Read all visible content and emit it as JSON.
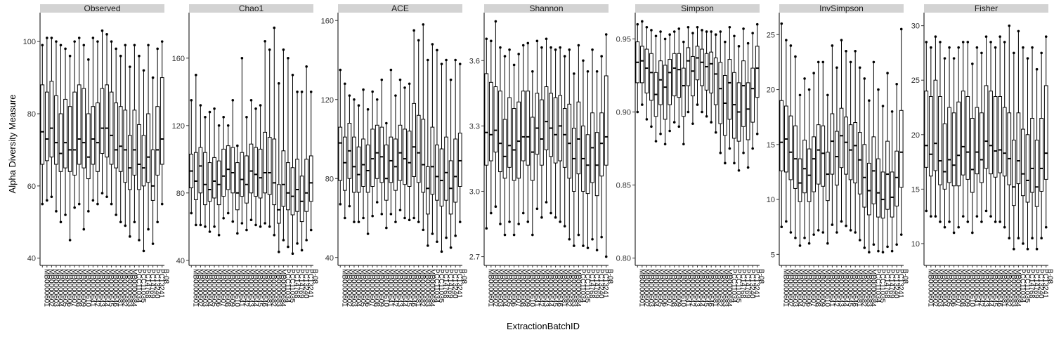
{
  "chart_data": {
    "type": "box",
    "ylabel": "Alpha Diversity Measure",
    "xlabel": "ExtractionBatchID",
    "colors": {
      "strip": "#d3d3d3",
      "box": "#000000",
      "background": "#ffffff"
    },
    "categories": [
      "MB0000601",
      "MB0000602",
      "MB0000603",
      "MB0000604",
      "MB0000605",
      "MB0000606",
      "MB0000607",
      "MB0000608",
      "MB0000609",
      "MB0000610",
      "MB0000641",
      "MB0000642",
      "MB0000643",
      "MB0000644",
      "MB0000645",
      "MB0000646",
      "MB0000681",
      "MB0000682",
      "MB0000683",
      "MB0000684",
      "PCC11034",
      "PCC11035",
      "PC14768",
      "PC14769",
      "PC13240",
      "PC13241",
      "B-08"
    ],
    "panels": [
      {
        "name": "Observed",
        "ylim": [
          38,
          108
        ],
        "ticks": [
          40,
          60,
          80,
          100
        ],
        "medians": [
          75,
          73,
          76,
          72,
          69,
          72,
          70,
          70,
          73,
          72,
          68,
          73,
          72,
          76,
          76,
          74,
          70,
          71,
          70,
          65,
          70,
          66,
          65,
          68,
          60,
          70,
          73
        ],
        "q1": [
          66,
          67,
          68,
          66,
          64,
          65,
          64,
          63,
          66,
          65,
          62,
          66,
          64,
          69,
          68,
          66,
          65,
          64,
          61,
          59,
          63,
          59,
          60,
          61,
          56,
          63,
          66
        ],
        "q3": [
          88,
          86,
          89,
          85,
          80,
          84,
          82,
          86,
          88,
          87,
          80,
          82,
          83,
          87,
          88,
          86,
          83,
          82,
          81,
          74,
          81,
          77,
          74,
          80,
          70,
          82,
          90
        ],
        "lo": [
          55,
          56,
          57,
          53,
          50,
          52,
          45,
          54,
          55,
          48,
          53,
          56,
          55,
          58,
          57,
          55,
          52,
          50,
          49,
          46,
          50,
          45,
          42,
          48,
          44,
          50,
          55
        ],
        "hi": [
          99,
          101,
          101,
          100,
          99,
          98,
          96,
          100,
          101,
          99,
          95,
          101,
          100,
          103,
          102,
          100,
          98,
          96,
          99,
          93,
          99,
          96,
          92,
          99,
          90,
          98,
          100
        ]
      },
      {
        "name": "Chao1",
        "ylim": [
          37,
          187
        ],
        "ticks": [
          40,
          80,
          120,
          160
        ],
        "medians": [
          93,
          87,
          96,
          85,
          82,
          87,
          85,
          90,
          94,
          92,
          80,
          88,
          85,
          93,
          91,
          89,
          92,
          92,
          86,
          70,
          85,
          80,
          78,
          82,
          75,
          80,
          86
        ],
        "q1": [
          83,
          76,
          80,
          73,
          75,
          77,
          73,
          78,
          82,
          80,
          70,
          78,
          74,
          80,
          78,
          77,
          80,
          79,
          73,
          62,
          72,
          70,
          67,
          69,
          63,
          69,
          75
        ],
        "q3": [
          103,
          104,
          107,
          104,
          98,
          101,
          99,
          106,
          108,
          107,
          98,
          104,
          102,
          109,
          107,
          106,
          116,
          113,
          112,
          85,
          105,
          98,
          95,
          100,
          90,
          100,
          102
        ],
        "lo": [
          68,
          61,
          61,
          60,
          57,
          60,
          55,
          65,
          68,
          63,
          56,
          62,
          58,
          64,
          61,
          60,
          62,
          60,
          55,
          45,
          52,
          48,
          44,
          50,
          46,
          52,
          58
        ],
        "hi": [
          135,
          150,
          132,
          125,
          128,
          130,
          120,
          125,
          120,
          135,
          108,
          160,
          125,
          135,
          130,
          132,
          170,
          165,
          178,
          145,
          165,
          160,
          150,
          140,
          140,
          155,
          140
        ]
      },
      {
        "name": "ACE",
        "ylim": [
          36,
          164
        ],
        "ticks": [
          40,
          80,
          120,
          160
        ],
        "medians": [
          98,
          88,
          94,
          86,
          82,
          87,
          84,
          90,
          93,
          91,
          80,
          89,
          86,
          93,
          90,
          88,
          96,
          93,
          87,
          75,
          86,
          81,
          79,
          83,
          75,
          81,
          89
        ],
        "q1": [
          79,
          74,
          80,
          73,
          73,
          76,
          73,
          76,
          80,
          78,
          69,
          78,
          74,
          79,
          77,
          76,
          81,
          78,
          73,
          62,
          72,
          69,
          66,
          69,
          62,
          68,
          76
        ],
        "q3": [
          106,
          101,
          108,
          101,
          96,
          100,
          97,
          105,
          107,
          106,
          97,
          101,
          100,
          107,
          105,
          104,
          118,
          112,
          110,
          86,
          106,
          97,
          95,
          101,
          89,
          100,
          103
        ],
        "lo": [
          67,
          60,
          66,
          58,
          58,
          60,
          52,
          61,
          68,
          62,
          55,
          62,
          58,
          64,
          60,
          59,
          60,
          58,
          54,
          46,
          52,
          48,
          43,
          50,
          45,
          51,
          58
        ],
        "hi": [
          135,
          128,
          122,
          120,
          117,
          125,
          115,
          124,
          120,
          130,
          108,
          135,
          122,
          130,
          126,
          128,
          155,
          150,
          158,
          140,
          148,
          145,
          138,
          140,
          130,
          140,
          138
        ]
      },
      {
        "name": "Shannon",
        "ylim": [
          2.66,
          3.82
        ],
        "ticks": [
          2.7,
          3.0,
          3.3,
          3.6
        ],
        "medians": [
          3.27,
          3.26,
          3.28,
          3.22,
          3.16,
          3.21,
          3.19,
          3.23,
          3.25,
          3.25,
          3.18,
          3.29,
          3.24,
          3.32,
          3.29,
          3.26,
          3.3,
          3.26,
          3.22,
          3.15,
          3.24,
          3.15,
          3.12,
          3.2,
          3.12,
          3.22,
          3.25
        ],
        "q1": [
          3.12,
          3.14,
          3.18,
          3.09,
          3.06,
          3.11,
          3.05,
          3.06,
          3.14,
          3.12,
          3.05,
          3.17,
          3.12,
          3.19,
          3.16,
          3.13,
          3.14,
          3.11,
          3.06,
          3.0,
          3.08,
          3.0,
          2.99,
          3.04,
          2.98,
          3.07,
          3.12
        ],
        "q3": [
          3.54,
          3.5,
          3.48,
          3.46,
          3.33,
          3.43,
          3.38,
          3.41,
          3.46,
          3.46,
          3.34,
          3.45,
          3.42,
          3.48,
          3.45,
          3.43,
          3.44,
          3.38,
          3.4,
          3.29,
          3.41,
          3.3,
          3.26,
          3.36,
          3.27,
          3.36,
          3.53
        ],
        "lo": [
          2.83,
          2.9,
          2.93,
          2.85,
          2.8,
          2.86,
          2.8,
          2.85,
          2.9,
          2.86,
          2.8,
          2.92,
          2.88,
          2.95,
          2.9,
          2.88,
          2.86,
          2.84,
          2.78,
          2.75,
          2.8,
          2.75,
          2.74,
          2.78,
          2.73,
          2.79,
          2.7
        ],
        "hi": [
          3.7,
          3.69,
          3.78,
          3.66,
          3.62,
          3.65,
          3.58,
          3.63,
          3.67,
          3.68,
          3.55,
          3.69,
          3.66,
          3.7,
          3.66,
          3.65,
          3.66,
          3.62,
          3.65,
          3.54,
          3.67,
          3.6,
          3.55,
          3.65,
          3.55,
          3.62,
          3.72
        ]
      },
      {
        "name": "Simpson",
        "ylim": [
          0.795,
          0.968
        ],
        "ticks": [
          0.8,
          0.85,
          0.9,
          0.95
        ],
        "medians": [
          0.934,
          0.935,
          0.93,
          0.927,
          0.912,
          0.922,
          0.917,
          0.927,
          0.93,
          0.929,
          0.918,
          0.935,
          0.928,
          0.937,
          0.934,
          0.931,
          0.933,
          0.926,
          0.916,
          0.906,
          0.92,
          0.905,
          0.9,
          0.918,
          0.902,
          0.916,
          0.93
        ],
        "q1": [
          0.92,
          0.92,
          0.913,
          0.908,
          0.897,
          0.905,
          0.895,
          0.905,
          0.911,
          0.91,
          0.897,
          0.918,
          0.911,
          0.922,
          0.918,
          0.915,
          0.913,
          0.905,
          0.892,
          0.884,
          0.895,
          0.882,
          0.88,
          0.89,
          0.881,
          0.893,
          0.91
        ],
        "q3": [
          0.948,
          0.945,
          0.943,
          0.94,
          0.927,
          0.935,
          0.932,
          0.936,
          0.94,
          0.94,
          0.93,
          0.944,
          0.938,
          0.945,
          0.943,
          0.94,
          0.941,
          0.937,
          0.934,
          0.925,
          0.936,
          0.927,
          0.92,
          0.935,
          0.92,
          0.93,
          0.945
        ],
        "lo": [
          0.9,
          0.905,
          0.895,
          0.89,
          0.88,
          0.885,
          0.878,
          0.887,
          0.893,
          0.89,
          0.878,
          0.9,
          0.892,
          0.905,
          0.9,
          0.897,
          0.893,
          0.886,
          0.872,
          0.865,
          0.875,
          0.865,
          0.86,
          0.872,
          0.862,
          0.875,
          0.885
        ],
        "hi": [
          0.96,
          0.962,
          0.958,
          0.956,
          0.952,
          0.955,
          0.95,
          0.953,
          0.955,
          0.957,
          0.948,
          0.958,
          0.954,
          0.958,
          0.956,
          0.955,
          0.955,
          0.953,
          0.955,
          0.948,
          0.958,
          0.952,
          0.945,
          0.957,
          0.947,
          0.954,
          0.96
        ]
      },
      {
        "name": "InvSimpson",
        "ylim": [
          4,
          27
        ],
        "ticks": [
          5,
          10,
          15,
          20,
          25
        ],
        "medians": [
          15.2,
          15.5,
          14.3,
          13.7,
          11.5,
          12.8,
          12.2,
          13.7,
          14.5,
          14.2,
          12.3,
          15.3,
          13.9,
          15.8,
          15.2,
          14.5,
          14.9,
          13.6,
          12.0,
          10.8,
          12.6,
          10.6,
          10.0,
          12.3,
          10.2,
          12.0,
          14.3
        ],
        "q1": [
          12.6,
          12.5,
          11.8,
          11.0,
          9.8,
          10.6,
          9.8,
          10.7,
          11.4,
          11.2,
          9.9,
          12.3,
          11.3,
          12.9,
          12.3,
          11.8,
          11.5,
          10.5,
          9.3,
          8.6,
          9.6,
          8.4,
          8.3,
          9.1,
          8.4,
          9.4,
          11.1
        ],
        "q3": [
          19.0,
          18.5,
          17.6,
          16.7,
          13.7,
          15.4,
          14.6,
          15.7,
          16.8,
          16.7,
          14.3,
          17.8,
          16.2,
          18.3,
          17.5,
          16.8,
          17.0,
          16.1,
          15.0,
          13.3,
          15.7,
          13.7,
          12.5,
          15.3,
          12.5,
          14.4,
          18.1
        ],
        "lo": [
          7.5,
          8.0,
          7.0,
          6.5,
          5.8,
          6.5,
          6.0,
          6.8,
          7.2,
          7.0,
          6.0,
          7.7,
          7.0,
          8.0,
          7.6,
          7.2,
          7.0,
          6.3,
          5.6,
          5.2,
          5.9,
          5.3,
          5.2,
          5.7,
          5.3,
          5.9,
          6.8
        ],
        "hi": [
          26.0,
          24.5,
          24.0,
          23.0,
          19.5,
          21.0,
          20.0,
          21.5,
          22.5,
          22.5,
          19.5,
          24.0,
          22.0,
          24.5,
          23.5,
          22.5,
          23.5,
          22.0,
          21.0,
          19.0,
          22.5,
          20.0,
          18.5,
          21.5,
          18.0,
          20.5,
          25.5
        ]
      },
      {
        "name": "Fisher",
        "ylim": [
          8,
          31.2
        ],
        "ticks": [
          10,
          15,
          20,
          25,
          30
        ],
        "medians": [
          19.0,
          18.2,
          19.2,
          17.6,
          16.6,
          17.7,
          17.2,
          18.1,
          18.9,
          18.4,
          16.8,
          18.4,
          17.7,
          19.4,
          19.0,
          18.5,
          18.6,
          18.3,
          17.8,
          15.2,
          17.6,
          16.4,
          15.8,
          16.9,
          15.2,
          16.9,
          18.3
        ],
        "q1": [
          17.0,
          16.2,
          16.7,
          15.4,
          15.0,
          15.6,
          15.3,
          15.3,
          16.3,
          15.9,
          14.7,
          16.4,
          15.6,
          16.9,
          16.4,
          16.1,
          16.5,
          16.2,
          15.4,
          13.5,
          15.5,
          14.4,
          13.8,
          14.7,
          13.4,
          14.8,
          15.9
        ],
        "q3": [
          24.0,
          23.5,
          25.0,
          23.5,
          21.0,
          22.5,
          22.0,
          23.0,
          24.0,
          23.5,
          21.5,
          22.5,
          22.0,
          24.5,
          24.0,
          23.5,
          23.5,
          22.5,
          22.0,
          19.5,
          22.0,
          20.5,
          20.0,
          21.5,
          19.5,
          21.5,
          24.5
        ],
        "lo": [
          13.0,
          12.5,
          12.5,
          12.0,
          11.5,
          12.0,
          11.0,
          11.5,
          12.5,
          12.0,
          11.0,
          12.5,
          12.0,
          13.0,
          12.5,
          12.0,
          12.0,
          11.5,
          10.5,
          9.5,
          10.5,
          10.0,
          9.5,
          10.5,
          9.5,
          10.5,
          11.5
        ],
        "hi": [
          28.5,
          28.0,
          29.0,
          28.5,
          27.0,
          28.0,
          27.0,
          28.0,
          28.5,
          28.5,
          26.5,
          28.0,
          27.5,
          29.0,
          28.5,
          28.0,
          29.0,
          28.5,
          30.0,
          27.5,
          29.5,
          28.0,
          27.0,
          28.0,
          26.0,
          27.5,
          29.0
        ]
      }
    ]
  }
}
